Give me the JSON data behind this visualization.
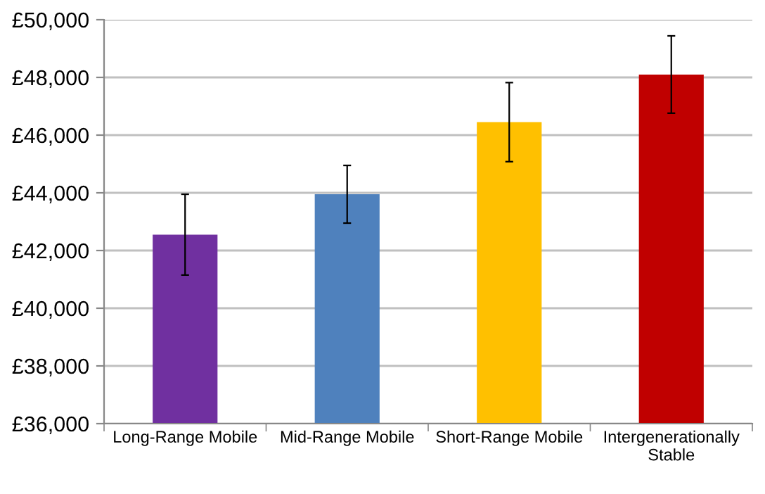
{
  "chart_data": {
    "type": "bar",
    "categories": [
      "Long-Range Mobile",
      "Mid-Range Mobile",
      "Short-Range Mobile",
      "Intergenerationally\nStable"
    ],
    "values": [
      42550,
      43950,
      46450,
      48100
    ],
    "errors": [
      1400,
      1000,
      1370,
      1340
    ],
    "colors": [
      "#7030a0",
      "#4f81bd",
      "#ffc000",
      "#c00000"
    ],
    "ylim": [
      36000,
      50000
    ],
    "yticks": [
      {
        "value": 36000,
        "label": "£36,000"
      },
      {
        "value": 38000,
        "label": "£38,000"
      },
      {
        "value": 40000,
        "label": "£40,000"
      },
      {
        "value": 42000,
        "label": "£42,000"
      },
      {
        "value": 44000,
        "label": "£44,000"
      },
      {
        "value": 46000,
        "label": "£46,000"
      },
      {
        "value": 48000,
        "label": "£48,000"
      },
      {
        "value": 50000,
        "label": "£50,000"
      }
    ],
    "grid": "y"
  }
}
